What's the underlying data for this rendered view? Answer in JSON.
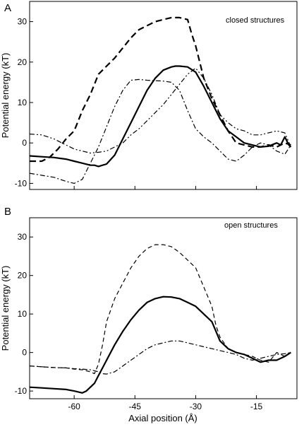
{
  "chart_data": [
    {
      "type": "line",
      "panel_label": "A",
      "annotation": "closed structures",
      "ylabel": "Potential energy (kT)",
      "xlabel": "",
      "xlim": [
        -71,
        -5
      ],
      "ylim": [
        -11.5,
        35
      ],
      "xticks": [
        -60,
        -45,
        -30,
        -15
      ],
      "yticks": [
        -10,
        0,
        10,
        20,
        30
      ],
      "xtick_labels": [],
      "ytick_labels": [
        "-10",
        "0",
        "10",
        "20",
        "30"
      ],
      "series": [
        {
          "style": "dashed-thick",
          "x": [
            -71,
            -68,
            -66,
            -64,
            -62,
            -60,
            -58,
            -56,
            -54,
            -52,
            -50,
            -48,
            -46,
            -44,
            -42,
            -40,
            -38,
            -36,
            -34,
            -32,
            -31,
            -30,
            -28,
            -26,
            -24,
            -22,
            -20,
            -18,
            -16,
            -14,
            -12,
            -10,
            -8,
            -6.5
          ],
          "y": [
            -4.5,
            -4.5,
            -3.5,
            -1.5,
            1,
            3,
            8,
            12,
            17,
            19,
            21,
            23.5,
            26,
            28,
            29,
            30,
            30.5,
            31,
            31,
            30.5,
            27,
            24,
            16,
            11,
            7,
            3,
            0,
            -0.5,
            -1,
            -1,
            -0.5,
            -1,
            0,
            -0.5
          ]
        },
        {
          "style": "solid-thick",
          "x": [
            -71,
            -68,
            -65,
            -62,
            -60,
            -58,
            -56,
            -55,
            -54,
            -53,
            -52,
            -50,
            -48,
            -46,
            -44,
            -42,
            -40,
            -38,
            -36,
            -35,
            -34,
            -32,
            -30,
            -28,
            -26,
            -24,
            -22,
            -20,
            -18,
            -16,
            -14,
            -12,
            -10,
            -9,
            -8,
            -7,
            -6.5
          ],
          "y": [
            -3.2,
            -3.4,
            -3.6,
            -4,
            -4.5,
            -5,
            -5.5,
            -5.5,
            -5.8,
            -5.5,
            -5.2,
            -3,
            1,
            5,
            9,
            13,
            16,
            18,
            18.8,
            19,
            19,
            18.8,
            17.5,
            14,
            10,
            6,
            3,
            1.5,
            0,
            -0.5,
            -1,
            -0.8,
            0,
            -0.5,
            1.5,
            -0.5,
            -1
          ]
        },
        {
          "style": "dashdot",
          "x": [
            -71,
            -68,
            -65,
            -62,
            -60,
            -58,
            -56,
            -54,
            -52,
            -50,
            -48,
            -46,
            -44,
            -42,
            -40,
            -38,
            -36,
            -34,
            -32,
            -30,
            -28,
            -26,
            -24,
            -22,
            -20,
            -18,
            -16,
            -14,
            -12,
            -10,
            -8,
            -6.5
          ],
          "y": [
            -7.5,
            -8,
            -8.5,
            -9.5,
            -10,
            -9,
            -5,
            -1,
            4,
            9,
            13,
            15.5,
            15.7,
            15.5,
            15.4,
            15.3,
            15,
            13,
            8,
            3.5,
            1.5,
            0,
            -2,
            -4,
            -4.5,
            -3,
            -1,
            0,
            -0.5,
            -2,
            -2.8,
            -0.5
          ]
        },
        {
          "style": "dashdotdot",
          "x": [
            -71,
            -68,
            -65,
            -62,
            -60,
            -58,
            -56,
            -54,
            -52,
            -50,
            -48,
            -46,
            -44,
            -42,
            -40,
            -38,
            -36,
            -34,
            -32,
            -30,
            -28,
            -26,
            -24,
            -22,
            -20,
            -18,
            -16,
            -14,
            -12,
            -10,
            -8,
            -6.5
          ],
          "y": [
            2.2,
            2,
            1,
            -0.5,
            -1.5,
            -2,
            -2.5,
            -2.3,
            -2,
            -1,
            0,
            2,
            3.5,
            5.5,
            7.5,
            9.5,
            12,
            14.5,
            17,
            18.5,
            16,
            12,
            7,
            5,
            3.5,
            3,
            2,
            2,
            2.5,
            3,
            2.5,
            -1
          ]
        }
      ]
    },
    {
      "type": "line",
      "panel_label": "B",
      "annotation": "open structures",
      "ylabel": "Potential energy (kT)",
      "xlabel": "Axial position (Å)",
      "xlim": [
        -71,
        -5
      ],
      "ylim": [
        -12,
        35
      ],
      "xticks": [
        -60,
        -45,
        -30,
        -15
      ],
      "yticks": [
        -10,
        0,
        10,
        20,
        30
      ],
      "xtick_labels": [
        "-60",
        "-45",
        "-30",
        "-15"
      ],
      "ytick_labels": [
        "-10",
        "0",
        "10",
        "20",
        "30"
      ],
      "series": [
        {
          "style": "dashed-thin",
          "x": [
            -71,
            -68,
            -65,
            -62,
            -60,
            -58,
            -56,
            -55,
            -54,
            -53,
            -52,
            -50,
            -48,
            -46,
            -44,
            -42,
            -40,
            -38,
            -36,
            -34,
            -32,
            -30,
            -28,
            -26,
            -25,
            -24,
            -22,
            -20,
            -18,
            -16,
            -14,
            -12,
            -10,
            -8,
            -6.5
          ],
          "y": [
            -3.5,
            -3.7,
            -3.9,
            -4,
            -4.3,
            -4.5,
            -5,
            -5.5,
            -3,
            2,
            8,
            14,
            18,
            22,
            25,
            27,
            28,
            28,
            27.5,
            26,
            24,
            22,
            17,
            12,
            7,
            4,
            1,
            0,
            -0.5,
            -1,
            -2,
            -2.5,
            0,
            -1,
            0
          ]
        },
        {
          "style": "solid-thick",
          "x": [
            -71,
            -68,
            -65,
            -62,
            -60,
            -58,
            -57,
            -56,
            -55,
            -54,
            -53,
            -52,
            -50,
            -48,
            -46,
            -44,
            -42,
            -40,
            -38,
            -36,
            -34,
            -32,
            -30,
            -28,
            -26,
            -25,
            -24,
            -22,
            -20,
            -18,
            -16,
            -14,
            -12,
            -10,
            -8,
            -6.5
          ],
          "y": [
            -9,
            -9.2,
            -9.4,
            -9.6,
            -10,
            -10.5,
            -10,
            -9,
            -8,
            -6,
            -4,
            -2,
            2,
            5.5,
            8.5,
            11,
            13,
            14,
            14.5,
            14.4,
            14,
            13,
            12,
            10,
            8,
            5.5,
            3,
            1,
            0,
            -0.5,
            -1.5,
            -2.5,
            -2,
            -2,
            -1,
            0
          ]
        },
        {
          "style": "dashdot",
          "x": [
            -71,
            -68,
            -65,
            -62,
            -60,
            -58,
            -56,
            -54,
            -53,
            -52,
            -50,
            -48,
            -46,
            -44,
            -42,
            -40,
            -38,
            -36,
            -34,
            -32,
            -30,
            -28,
            -26,
            -24,
            -22,
            -20,
            -18,
            -16,
            -14,
            -12,
            -10,
            -8,
            -6.5
          ],
          "y": [
            -3.5,
            -3.7,
            -3.9,
            -4,
            -4.2,
            -4.3,
            -4.5,
            -5,
            -5.5,
            -5.6,
            -5,
            -3.5,
            -2,
            -0.5,
            1,
            2,
            2.5,
            3,
            3,
            2.5,
            2,
            1.5,
            1,
            0.5,
            0,
            -0.5,
            -1.5,
            -2,
            -1.5,
            -1,
            -0.5,
            -0.3,
            0
          ]
        }
      ]
    }
  ]
}
